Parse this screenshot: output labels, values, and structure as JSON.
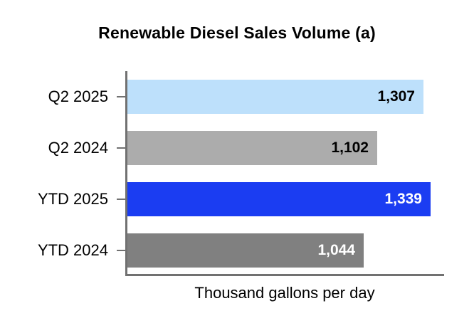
{
  "chart_data": {
    "type": "bar",
    "orientation": "horizontal",
    "title": "Renewable Diesel Sales Volume (a)",
    "xlabel": "Thousand gallons per day",
    "categories": [
      "Q2 2025",
      "Q2 2024",
      "YTD 2025",
      "YTD 2024"
    ],
    "values": [
      1307,
      1102,
      1339,
      1044
    ],
    "value_labels": [
      "1,307",
      "1,102",
      "1,339",
      "1,044"
    ],
    "bar_colors": [
      "#BDE0FB",
      "#ACACAC",
      "#1B3DF2",
      "#808080"
    ],
    "value_label_colors": [
      "#000000",
      "#000000",
      "#FFFFFF",
      "#FFFFFF"
    ],
    "xlim": [
      0,
      1408
    ],
    "grid": false,
    "legend": false,
    "axis_color": "#717171",
    "value_label_position": "inside-end"
  }
}
